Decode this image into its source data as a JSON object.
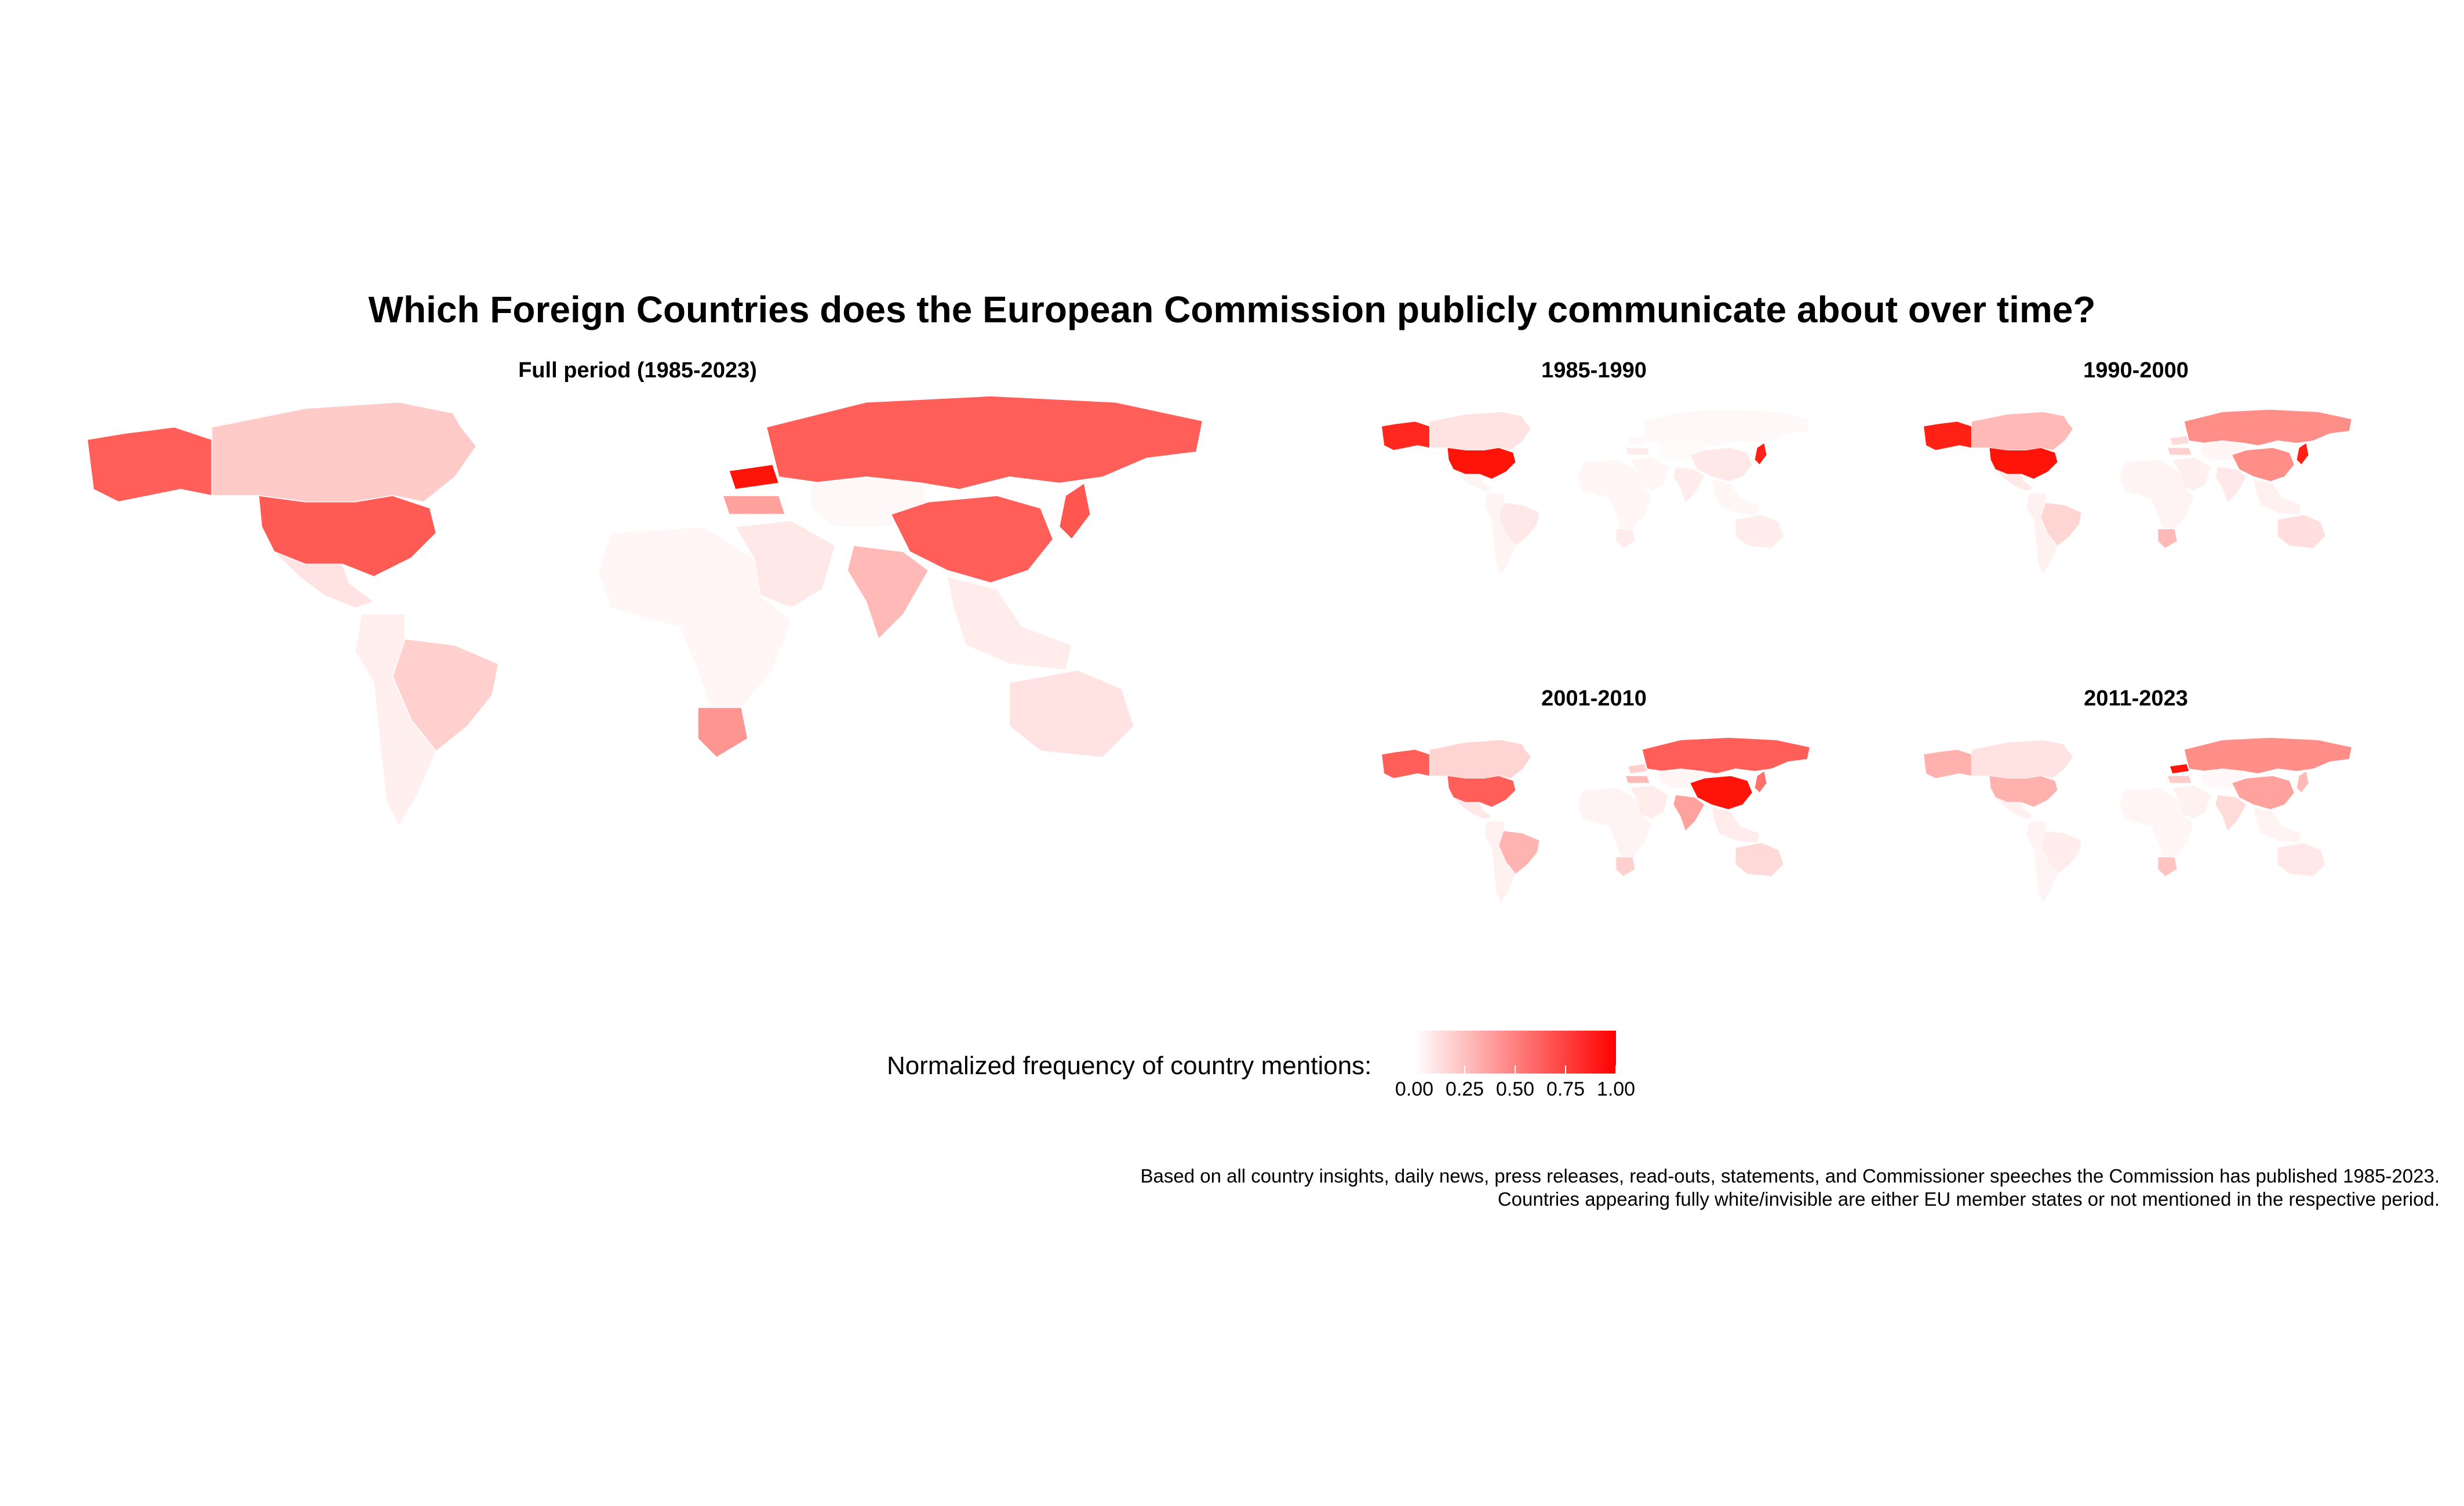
{
  "title": "Which Foreign Countries does the European Commission publicly communicate about over time?",
  "panels": [
    {
      "title": "Full period (1985-2023)",
      "values": {
        "canada": 0.22,
        "usa": 0.7,
        "mexico": 0.12,
        "alaska": 0.68,
        "brazil": 0.2,
        "southam": 0.07,
        "africa": 0.04,
        "safrica": 0.45,
        "russia": 0.68,
        "ukraine": 1.0,
        "china": 0.68,
        "india": 0.3,
        "japan": 0.72,
        "australia": 0.12,
        "mideast": 0.1,
        "centralasia": 0.03,
        "turkey": 0.4,
        "greenland": 0.0,
        "seasia": 0.08
      }
    },
    {
      "title": "1985-1990",
      "values": {
        "canada": 0.12,
        "usa": 1.0,
        "mexico": 0.05,
        "alaska": 0.92,
        "brazil": 0.1,
        "southam": 0.05,
        "africa": 0.04,
        "safrica": 0.08,
        "russia": 0.03,
        "ukraine": 0.03,
        "china": 0.1,
        "india": 0.08,
        "japan": 0.95,
        "australia": 0.08,
        "mideast": 0.04,
        "centralasia": 0.02,
        "turkey": 0.08,
        "greenland": 0.0,
        "seasia": 0.04
      }
    },
    {
      "title": "1990-2000",
      "values": {
        "canada": 0.3,
        "usa": 1.0,
        "mexico": 0.1,
        "alaska": 0.95,
        "brazil": 0.18,
        "southam": 0.06,
        "africa": 0.05,
        "safrica": 0.3,
        "russia": 0.48,
        "ukraine": 0.15,
        "china": 0.48,
        "india": 0.1,
        "japan": 0.95,
        "australia": 0.14,
        "mideast": 0.07,
        "centralasia": 0.04,
        "turkey": 0.2,
        "greenland": 0.0,
        "seasia": 0.06
      }
    },
    {
      "title": "2001-2010",
      "values": {
        "canada": 0.18,
        "usa": 0.68,
        "mexico": 0.1,
        "alaska": 0.68,
        "brazil": 0.32,
        "southam": 0.06,
        "africa": 0.05,
        "safrica": 0.2,
        "russia": 0.68,
        "ukraine": 0.2,
        "china": 1.0,
        "india": 0.4,
        "japan": 0.6,
        "australia": 0.16,
        "mideast": 0.08,
        "centralasia": 0.04,
        "turkey": 0.3,
        "greenland": 0.0,
        "seasia": 0.08
      }
    },
    {
      "title": "2011-2023",
      "values": {
        "canada": 0.12,
        "usa": 0.33,
        "mexico": 0.06,
        "alaska": 0.33,
        "brazil": 0.08,
        "southam": 0.05,
        "africa": 0.04,
        "safrica": 0.25,
        "russia": 0.48,
        "ukraine": 1.0,
        "china": 0.4,
        "india": 0.15,
        "japan": 0.3,
        "australia": 0.1,
        "mideast": 0.06,
        "centralasia": 0.03,
        "turkey": 0.22,
        "greenland": 0.0,
        "seasia": 0.05
      }
    }
  ],
  "legend": {
    "label": "Normalized frequency of country mentions:",
    "ticks": [
      "0.00",
      "0.25",
      "0.50",
      "0.75",
      "1.00"
    ],
    "tick_values": [
      0,
      0.25,
      0.5,
      0.75,
      1.0
    ],
    "color_low": "#ffffff",
    "color_high": "#ff0000"
  },
  "caption": [
    "Based on all country insights, daily news, press releases, read-outs, statements, and Commissioner speeches the Commission has published 1985-2023.",
    "Countries appearing fully white/invisible are either EU member states or not mentioned in the respective period."
  ]
}
